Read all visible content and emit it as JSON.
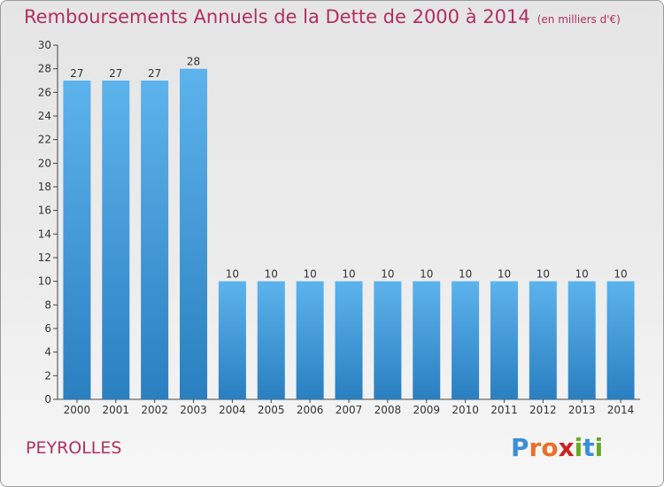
{
  "header": {
    "title": "Remboursements Annuels de la Dette de 2000 à 2014",
    "unit": "(en milliers d'€)"
  },
  "commune": "PEYROLLES",
  "logo": {
    "text": "Proxiti",
    "letters": [
      {
        "ch": "P",
        "color": "#3a8fd8"
      },
      {
        "ch": "r",
        "color": "#e9702a"
      },
      {
        "ch": "o",
        "color": "#e9702a"
      },
      {
        "ch": "x",
        "color": "#cc2222"
      },
      {
        "ch": "i",
        "color": "#66aa22"
      },
      {
        "ch": "t",
        "color": "#3a8fd8"
      },
      {
        "ch": "i",
        "color": "#66aa22"
      }
    ]
  },
  "colors": {
    "title": "#b03060",
    "bar_light": "#5db3ec",
    "bar_dark": "#2a7fc0",
    "axis": "#444444"
  },
  "chart_data": {
    "type": "bar",
    "categories": [
      "2000",
      "2001",
      "2002",
      "2003",
      "2004",
      "2005",
      "2006",
      "2007",
      "2008",
      "2009",
      "2010",
      "2011",
      "2012",
      "2013",
      "2014"
    ],
    "values": [
      27,
      27,
      27,
      28,
      10,
      10,
      10,
      10,
      10,
      10,
      10,
      10,
      10,
      10,
      10
    ],
    "ylim": [
      0,
      30
    ],
    "yticks": [
      0,
      2,
      4,
      6,
      8,
      10,
      12,
      14,
      16,
      18,
      20,
      22,
      24,
      26,
      28,
      30
    ],
    "grid": false,
    "data_labels": true
  }
}
